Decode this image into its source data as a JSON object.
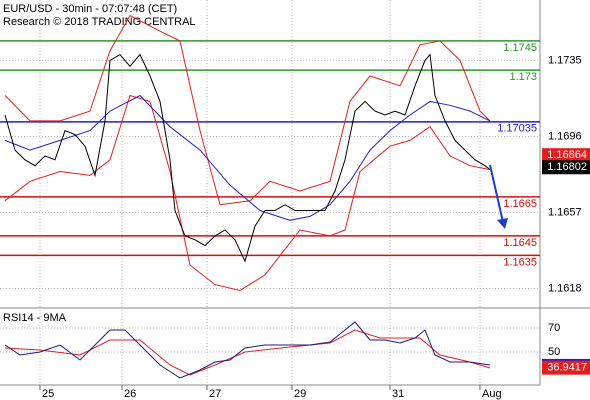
{
  "chart_data": [
    {
      "type": "line",
      "title": "EUR/USD - 30min - 07:07:48 (CET)",
      "subtitle": "Research © 2018 TRADING CENTRAL",
      "xlim": [
        0,
        540
      ],
      "ylim": [
        1.1608,
        1.1766
      ],
      "yticks": [
        1.1735,
        1.1696,
        1.1657,
        1.1618
      ],
      "grid": true,
      "series": [
        {
          "color": "#e02020",
          "x": [
            5,
            30,
            60,
            90,
            110,
            130,
            160,
            180,
            200,
            220,
            250,
            270,
            300,
            330,
            350,
            370,
            400,
            420,
            440,
            460,
            480,
            490
          ],
          "values": [
            1.1717,
            1.1704,
            1.1704,
            1.1709,
            1.174,
            1.1758,
            1.175,
            1.1745,
            1.1699,
            1.1661,
            1.1663,
            1.1673,
            1.1668,
            1.1673,
            1.1714,
            1.1727,
            1.1722,
            1.1743,
            1.1745,
            1.1735,
            1.1709,
            1.1704
          ]
        },
        {
          "color": "#e02020",
          "x": [
            5,
            30,
            60,
            90,
            110,
            130,
            150,
            170,
            190,
            215,
            240,
            265,
            300,
            330,
            345,
            360,
            390,
            410,
            430,
            450,
            470,
            490
          ],
          "values": [
            1.1663,
            1.1673,
            1.1678,
            1.1676,
            1.1684,
            1.1717,
            1.1714,
            1.1678,
            1.163,
            1.162,
            1.1617,
            1.1625,
            1.1648,
            1.1645,
            1.1648,
            1.1678,
            1.1691,
            1.1694,
            1.1701,
            1.1686,
            1.1681,
            1.1679
          ]
        },
        {
          "color": "#2020c0",
          "x": [
            5,
            30,
            60,
            90,
            110,
            140,
            170,
            200,
            230,
            260,
            290,
            310,
            330,
            350,
            370,
            390,
            410,
            430,
            450,
            470,
            490
          ],
          "values": [
            1.1694,
            1.1689,
            1.1694,
            1.1699,
            1.1709,
            1.1717,
            1.1701,
            1.1689,
            1.1671,
            1.1658,
            1.1653,
            1.1655,
            1.1661,
            1.1673,
            1.1689,
            1.1699,
            1.1707,
            1.1714,
            1.1712,
            1.1709,
            1.1704
          ]
        },
        {
          "color": "#000000",
          "x": [
            5,
            15,
            25,
            35,
            45,
            55,
            65,
            75,
            85,
            95,
            105,
            110,
            120,
            130,
            140,
            150,
            160,
            170,
            175,
            185,
            195,
            205,
            215,
            225,
            235,
            245,
            255,
            265,
            275,
            285,
            295,
            305,
            315,
            325,
            335,
            345,
            355,
            365,
            375,
            385,
            395,
            405,
            415,
            425,
            430,
            435,
            445,
            455,
            465,
            475,
            485,
            490
          ],
          "values": [
            1.1707,
            1.1689,
            1.1684,
            1.1681,
            1.1686,
            1.1684,
            1.1699,
            1.1697,
            1.1691,
            1.1676,
            1.1704,
            1.1735,
            1.1738,
            1.1732,
            1.1738,
            1.1727,
            1.1714,
            1.1684,
            1.1658,
            1.1645,
            1.1643,
            1.164,
            1.1645,
            1.1648,
            1.1643,
            1.1632,
            1.165,
            1.1658,
            1.1658,
            1.1661,
            1.1658,
            1.1658,
            1.1658,
            1.1658,
            1.1668,
            1.1684,
            1.1709,
            1.1714,
            1.1709,
            1.1707,
            1.1709,
            1.1707,
            1.1722,
            1.1735,
            1.1738,
            1.1717,
            1.1704,
            1.1694,
            1.1689,
            1.1684,
            1.1681,
            1.1679
          ]
        }
      ],
      "levels": [
        {
          "value": 1.1745,
          "color": "#2a9a2a"
        },
        {
          "value": 1.173,
          "color": "#2a9a2a"
        },
        {
          "value": 1.17035,
          "color": "#1f1fd0"
        },
        {
          "value": 1.1665,
          "color": "#d01010"
        },
        {
          "value": 1.1645,
          "color": "#d01010"
        },
        {
          "value": 1.1635,
          "color": "#d01010"
        }
      ],
      "markers": [
        {
          "value": 1.16864,
          "color": "#e02020"
        },
        {
          "value": 1.16802,
          "color": "#000000"
        }
      ]
    },
    {
      "type": "line",
      "title": "RSI14 - 9MA",
      "xlim": [
        0,
        540
      ],
      "ylim": [
        22.5,
        85
      ],
      "yticks": [
        70,
        50
      ],
      "xticks": [
        {
          "value": 40,
          "label": "25"
        },
        {
          "value": 122,
          "label": "26"
        },
        {
          "value": 207,
          "label": "27"
        },
        {
          "value": 292,
          "label": "29"
        },
        {
          "value": 390,
          "label": "31"
        },
        {
          "value": 480,
          "label": "Aug"
        }
      ],
      "grid": true,
      "series": [
        {
          "color": "#e02020",
          "x": [
            5,
            40,
            80,
            110,
            140,
            170,
            190,
            215,
            245,
            290,
            330,
            355,
            380,
            420,
            440,
            470,
            490
          ],
          "values": [
            53.3,
            51.7,
            47.5,
            60,
            60,
            39.2,
            30.8,
            39.2,
            50,
            54.2,
            57.5,
            68.3,
            61.7,
            61.7,
            47.5,
            41.7,
            36.7
          ]
        },
        {
          "color": "#1a1a80",
          "x": [
            5,
            20,
            40,
            60,
            80,
            100,
            110,
            125,
            140,
            160,
            180,
            200,
            215,
            230,
            245,
            265,
            290,
            310,
            330,
            345,
            355,
            370,
            385,
            400,
            415,
            425,
            435,
            450,
            470,
            490
          ],
          "values": [
            55.8,
            47.5,
            50,
            55.8,
            43.3,
            60,
            68.3,
            68.3,
            55.8,
            39.2,
            28.3,
            35,
            41.7,
            43.3,
            53.3,
            55.8,
            55.8,
            55.8,
            58.3,
            68.3,
            75,
            60,
            60,
            57.5,
            61.7,
            68.3,
            47.5,
            41.7,
            41.7,
            39.2
          ]
        }
      ],
      "markers": [
        {
          "value": 38.3851,
          "color": "#1f1fd0"
        },
        {
          "value": 36.9417,
          "color": "#e02020"
        }
      ]
    }
  ]
}
